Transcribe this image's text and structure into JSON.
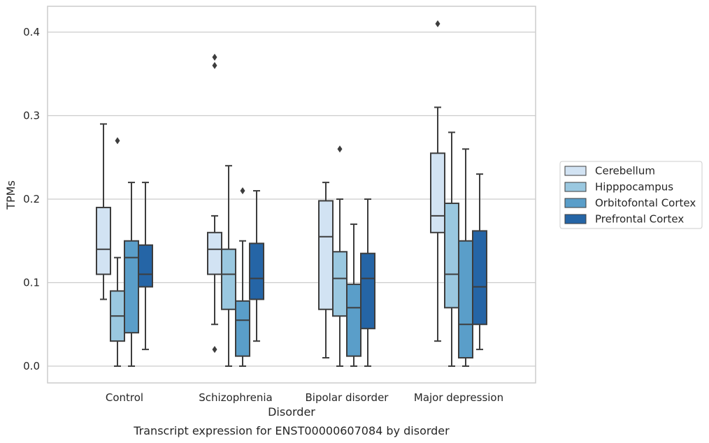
{
  "chart_data": {
    "type": "boxplot",
    "title": "",
    "caption": "Transcript expression for ENST00000607084 by disorder",
    "xlabel": "Disorder",
    "ylabel": "TPMs",
    "ylim": [
      -0.02,
      0.43
    ],
    "yticks": [
      0.0,
      0.1,
      0.2,
      0.3,
      0.4
    ],
    "ytick_labels": [
      "0.0",
      "0.1",
      "0.2",
      "0.3",
      "0.4"
    ],
    "grid": "horizontal",
    "legend_placement": "right",
    "categories": [
      "Control",
      "Schizophrenia",
      "Bipolar disorder",
      "Major depression"
    ],
    "series": [
      {
        "name": "Cerebellum",
        "color": "#d2e3f3",
        "boxes": [
          {
            "whislo": 0.08,
            "q1": 0.11,
            "med": 0.14,
            "q3": 0.19,
            "whishi": 0.29,
            "fliers": []
          },
          {
            "whislo": 0.05,
            "q1": 0.11,
            "med": 0.14,
            "q3": 0.16,
            "whishi": 0.18,
            "fliers": [
              0.02,
              0.36,
              0.37
            ]
          },
          {
            "whislo": 0.01,
            "q1": 0.068,
            "med": 0.155,
            "q3": 0.198,
            "whishi": 0.22,
            "fliers": []
          },
          {
            "whislo": 0.03,
            "q1": 0.16,
            "med": 0.18,
            "q3": 0.255,
            "whishi": 0.31,
            "fliers": [
              0.41
            ]
          }
        ]
      },
      {
        "name": "Hipppocampus",
        "color": "#9ac8e0",
        "boxes": [
          {
            "whislo": 0.0,
            "q1": 0.03,
            "med": 0.06,
            "q3": 0.09,
            "whishi": 0.13,
            "fliers": [
              0.27
            ]
          },
          {
            "whislo": 0.0,
            "q1": 0.068,
            "med": 0.11,
            "q3": 0.14,
            "whishi": 0.24,
            "fliers": []
          },
          {
            "whislo": 0.0,
            "q1": 0.06,
            "med": 0.105,
            "q3": 0.137,
            "whishi": 0.2,
            "fliers": [
              0.26
            ]
          },
          {
            "whislo": 0.0,
            "q1": 0.07,
            "med": 0.11,
            "q3": 0.195,
            "whishi": 0.28,
            "fliers": []
          }
        ]
      },
      {
        "name": "Orbitofontal Cortex",
        "color": "#5a9ec9",
        "boxes": [
          {
            "whislo": 0.0,
            "q1": 0.04,
            "med": 0.13,
            "q3": 0.15,
            "whishi": 0.22,
            "fliers": []
          },
          {
            "whislo": 0.0,
            "q1": 0.012,
            "med": 0.055,
            "q3": 0.078,
            "whishi": 0.15,
            "fliers": [
              0.21
            ]
          },
          {
            "whislo": 0.0,
            "q1": 0.012,
            "med": 0.07,
            "q3": 0.098,
            "whishi": 0.17,
            "fliers": []
          },
          {
            "whislo": 0.0,
            "q1": 0.01,
            "med": 0.05,
            "q3": 0.15,
            "whishi": 0.26,
            "fliers": []
          }
        ]
      },
      {
        "name": "Prefrontal Cortex",
        "color": "#2565a6",
        "boxes": [
          {
            "whislo": 0.02,
            "q1": 0.095,
            "med": 0.11,
            "q3": 0.145,
            "whishi": 0.22,
            "fliers": []
          },
          {
            "whislo": 0.03,
            "q1": 0.08,
            "med": 0.105,
            "q3": 0.147,
            "whishi": 0.21,
            "fliers": []
          },
          {
            "whislo": 0.0,
            "q1": 0.045,
            "med": 0.105,
            "q3": 0.135,
            "whishi": 0.2,
            "fliers": []
          },
          {
            "whislo": 0.02,
            "q1": 0.05,
            "med": 0.095,
            "q3": 0.162,
            "whishi": 0.23,
            "fliers": []
          }
        ]
      }
    ]
  },
  "colors": {
    "grid": "#cccccc",
    "frame": "#cccccc",
    "line": "#3d3d3d",
    "text": "#262626"
  }
}
